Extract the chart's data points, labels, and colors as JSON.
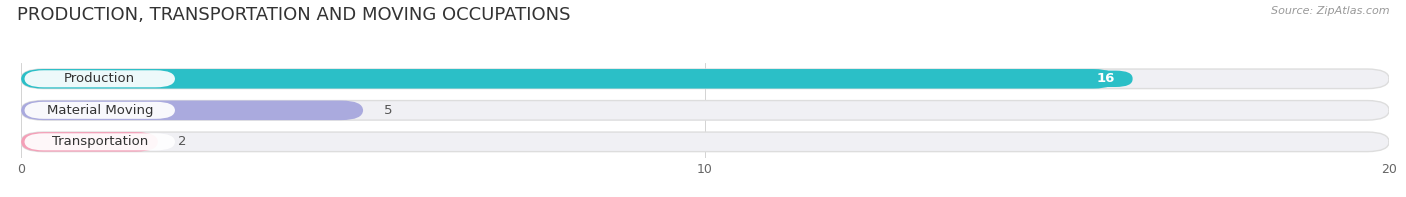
{
  "title": "PRODUCTION, TRANSPORTATION AND MOVING OCCUPATIONS",
  "source": "Source: ZipAtlas.com",
  "categories": [
    "Production",
    "Material Moving",
    "Transportation"
  ],
  "values": [
    16,
    5,
    2
  ],
  "bar_colors": [
    "#2bbfc7",
    "#aaaade",
    "#f4a0b8"
  ],
  "label_text_colors": [
    "#333333",
    "#333333",
    "#333333"
  ],
  "value_in_bar": [
    true,
    false,
    false
  ],
  "value_colors_in": [
    "#ffffff"
  ],
  "value_colors_out": [
    "#555555"
  ],
  "background_color": "#ffffff",
  "row_bg_color": "#eeeeee",
  "xlim": [
    0,
    20.5
  ],
  "xdata_max": 20,
  "xticks": [
    0,
    10,
    20
  ],
  "title_fontsize": 13,
  "label_fontsize": 9.5,
  "value_fontsize": 9.5,
  "figsize": [
    14.06,
    1.97
  ],
  "dpi": 100
}
